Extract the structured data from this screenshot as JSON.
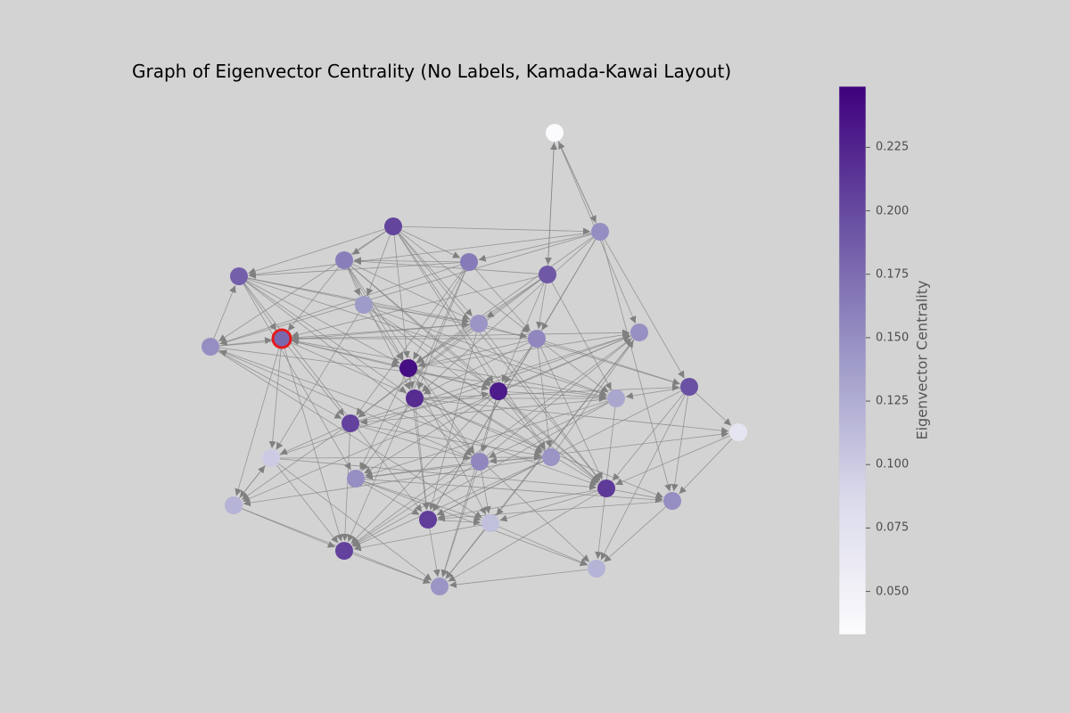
{
  "chart_data": {
    "type": "network",
    "title": "Graph of Eigenvector Centrality (No Labels, Kamada-Kawai Layout)",
    "colorbar": {
      "label": "Eigenvector Centrality",
      "range": [
        0.033,
        0.249
      ],
      "ticks": [
        "0.050",
        "0.075",
        "0.100",
        "0.125",
        "0.150",
        "0.175",
        "0.200",
        "0.225"
      ],
      "colormap": "Purples"
    },
    "node_color": "#dcdcdc",
    "edge_color": "#808080",
    "highlight_color": "#e41a1c",
    "nodes": [
      {
        "id": 0,
        "centrality": 0.034
      },
      {
        "id": 1,
        "centrality": 0.15
      },
      {
        "id": 2,
        "centrality": 0.203
      },
      {
        "id": 3,
        "centrality": 0.165
      },
      {
        "id": 4,
        "centrality": 0.19
      },
      {
        "id": 5,
        "centrality": 0.162
      },
      {
        "id": 6,
        "centrality": 0.185
      },
      {
        "id": 7,
        "centrality": 0.14
      },
      {
        "id": 8,
        "centrality": 0.145
      },
      {
        "id": 9,
        "centrality": 0.155
      },
      {
        "id": 10,
        "centrality": 0.15
      },
      {
        "id": 11,
        "centrality": 0.178,
        "highlight": true
      },
      {
        "id": 12,
        "centrality": 0.24
      },
      {
        "id": 13,
        "centrality": 0.23
      },
      {
        "id": 14,
        "centrality": 0.22
      },
      {
        "id": 15,
        "centrality": 0.195
      },
      {
        "id": 16,
        "centrality": 0.13
      },
      {
        "id": 17,
        "centrality": 0.205
      },
      {
        "id": 18,
        "centrality": 0.145
      },
      {
        "id": 19,
        "centrality": 0.07
      },
      {
        "id": 20,
        "centrality": 0.1
      },
      {
        "id": 21,
        "centrality": 0.155
      },
      {
        "id": 22,
        "centrality": 0.15
      },
      {
        "id": 23,
        "centrality": 0.148
      },
      {
        "id": 24,
        "centrality": 0.21
      },
      {
        "id": 25,
        "centrality": 0.15
      },
      {
        "id": 26,
        "centrality": 0.12
      },
      {
        "id": 27,
        "centrality": 0.208
      },
      {
        "id": 28,
        "centrality": 0.11
      },
      {
        "id": 29,
        "centrality": 0.205
      },
      {
        "id": 30,
        "centrality": 0.12
      },
      {
        "id": 31,
        "centrality": 0.145
      }
    ],
    "edges": [
      [
        0,
        4
      ],
      [
        0,
        1
      ],
      [
        1,
        0
      ],
      [
        0,
        23
      ],
      [
        4,
        0
      ],
      [
        2,
        1
      ],
      [
        2,
        3
      ],
      [
        2,
        6
      ],
      [
        2,
        10
      ],
      [
        2,
        12
      ],
      [
        2,
        5
      ],
      [
        2,
        13
      ],
      [
        2,
        24
      ],
      [
        2,
        9
      ],
      [
        2,
        7
      ],
      [
        1,
        3
      ],
      [
        1,
        6
      ],
      [
        1,
        10
      ],
      [
        1,
        14
      ],
      [
        1,
        9
      ],
      [
        1,
        15
      ],
      [
        1,
        25
      ],
      [
        1,
        27
      ],
      [
        3,
        6
      ],
      [
        3,
        10
      ],
      [
        3,
        12
      ],
      [
        3,
        5
      ],
      [
        3,
        9
      ],
      [
        3,
        17
      ],
      [
        4,
        11
      ],
      [
        4,
        5
      ],
      [
        4,
        12
      ],
      [
        4,
        13
      ],
      [
        4,
        9
      ],
      [
        4,
        17
      ],
      [
        5,
        11
      ],
      [
        5,
        12
      ],
      [
        5,
        13
      ],
      [
        5,
        8
      ],
      [
        5,
        7
      ],
      [
        5,
        24
      ],
      [
        6,
        12
      ],
      [
        6,
        11
      ],
      [
        6,
        14
      ],
      [
        6,
        9
      ],
      [
        6,
        8
      ],
      [
        6,
        16
      ],
      [
        6,
        27
      ],
      [
        7,
        12
      ],
      [
        7,
        8
      ],
      [
        7,
        13
      ],
      [
        7,
        16
      ],
      [
        7,
        20
      ],
      [
        8,
        11
      ],
      [
        8,
        12
      ],
      [
        8,
        17
      ],
      [
        8,
        24
      ],
      [
        8,
        27
      ],
      [
        9,
        12
      ],
      [
        9,
        13
      ],
      [
        9,
        14
      ],
      [
        9,
        15
      ],
      [
        9,
        16
      ],
      [
        9,
        18
      ],
      [
        10,
        11
      ],
      [
        10,
        8
      ],
      [
        10,
        17
      ],
      [
        10,
        16
      ],
      [
        10,
        24
      ],
      [
        11,
        12
      ],
      [
        11,
        13
      ],
      [
        11,
        17
      ],
      [
        11,
        20
      ],
      [
        11,
        18
      ],
      [
        11,
        26
      ],
      [
        11,
        29
      ],
      [
        12,
        13
      ],
      [
        12,
        14
      ],
      [
        12,
        18
      ],
      [
        12,
        21
      ],
      [
        12,
        24
      ],
      [
        12,
        22
      ],
      [
        12,
        27
      ],
      [
        13,
        16
      ],
      [
        13,
        18
      ],
      [
        13,
        21
      ],
      [
        13,
        22
      ],
      [
        13,
        24
      ],
      [
        13,
        29
      ],
      [
        14,
        15
      ],
      [
        14,
        16
      ],
      [
        14,
        19
      ],
      [
        14,
        22
      ],
      [
        14,
        25
      ],
      [
        14,
        30
      ],
      [
        15,
        16
      ],
      [
        15,
        19
      ],
      [
        15,
        24
      ],
      [
        15,
        25
      ],
      [
        15,
        27
      ],
      [
        16,
        17
      ],
      [
        16,
        21
      ],
      [
        16,
        22
      ],
      [
        16,
        29
      ],
      [
        17,
        20
      ],
      [
        17,
        18
      ],
      [
        17,
        21
      ],
      [
        17,
        23
      ],
      [
        17,
        26
      ],
      [
        17,
        29
      ],
      [
        18,
        21
      ],
      [
        18,
        29
      ],
      [
        18,
        23
      ],
      [
        18,
        26
      ],
      [
        18,
        27
      ],
      [
        19,
        24
      ],
      [
        19,
        25
      ],
      [
        20,
        23
      ],
      [
        20,
        26
      ],
      [
        20,
        29
      ],
      [
        20,
        24
      ],
      [
        21,
        22
      ],
      [
        21,
        23
      ],
      [
        21,
        28
      ],
      [
        21,
        29
      ],
      [
        22,
        25
      ],
      [
        22,
        28
      ],
      [
        22,
        30
      ],
      [
        22,
        27
      ],
      [
        23,
        26
      ],
      [
        23,
        28
      ],
      [
        23,
        29
      ],
      [
        23,
        31
      ],
      [
        24,
        25
      ],
      [
        24,
        28
      ],
      [
        24,
        31
      ],
      [
        25,
        27
      ],
      [
        25,
        30
      ],
      [
        26,
        29
      ],
      [
        27,
        28
      ],
      [
        27,
        31
      ],
      [
        28,
        29
      ],
      [
        28,
        31
      ],
      [
        29,
        31
      ],
      [
        30,
        31
      ],
      [
        26,
        31
      ],
      [
        21,
        31
      ],
      [
        13,
        31
      ],
      [
        20,
        18
      ],
      [
        10,
        6
      ],
      [
        7,
        24
      ],
      [
        5,
        14
      ],
      [
        3,
        14
      ],
      [
        8,
        15
      ],
      [
        16,
        11
      ],
      [
        12,
        23
      ],
      [
        13,
        23
      ],
      [
        9,
        27
      ],
      [
        22,
        19
      ],
      [
        21,
        10
      ],
      [
        24,
        27
      ],
      [
        11,
        23
      ],
      [
        4,
        8
      ],
      [
        2,
        18
      ],
      [
        17,
        13
      ],
      [
        20,
        31
      ],
      [
        26,
        20
      ],
      [
        6,
        21
      ],
      [
        14,
        27
      ],
      [
        12,
        28
      ],
      [
        5,
        21
      ],
      [
        1,
        12
      ],
      [
        9,
        11
      ],
      [
        28,
        30
      ],
      [
        16,
        30
      ],
      [
        15,
        30
      ],
      [
        2,
        8
      ],
      [
        4,
        16
      ],
      [
        3,
        29
      ],
      [
        10,
        28
      ],
      [
        6,
        22
      ],
      [
        9,
        24
      ]
    ]
  }
}
